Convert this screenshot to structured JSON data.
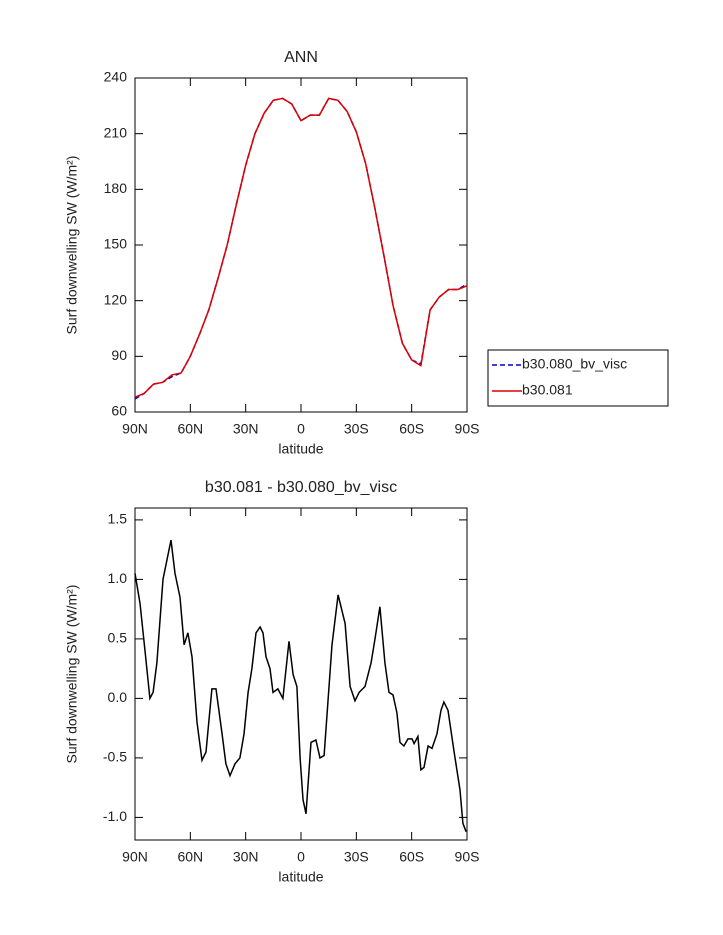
{
  "chart_data": [
    {
      "type": "line",
      "title": "ANN",
      "xlabel": "latitude",
      "ylabel": "Surf downwelling SW (W/m²)",
      "x": [
        90,
        85,
        80,
        75,
        70,
        65,
        60,
        55,
        50,
        45,
        40,
        35,
        30,
        25,
        20,
        15,
        10,
        5,
        0,
        -5,
        -10,
        -15,
        -20,
        -25,
        -30,
        -35,
        -40,
        -45,
        -50,
        -55,
        -60,
        -65,
        -70,
        -75,
        -80,
        -85,
        -90
      ],
      "series": [
        {
          "name": "b30.080_bv_visc",
          "color": "#0000cc",
          "dash": true,
          "values": [
            67,
            70,
            75,
            76,
            79,
            81,
            90,
            102,
            115,
            132,
            150,
            172,
            193,
            210,
            221,
            228,
            229,
            226,
            217,
            220,
            220,
            229,
            228,
            222,
            211,
            194,
            170,
            144,
            117,
            97,
            88,
            86,
            115,
            122,
            126,
            126,
            129
          ]
        },
        {
          "name": "b30.081",
          "color": "#dd0000",
          "dash": false,
          "values": [
            68,
            70,
            75,
            76,
            80,
            81,
            90,
            102,
            115,
            132,
            150,
            172,
            193,
            210,
            221,
            228,
            229,
            226,
            217,
            220,
            220,
            229,
            228,
            222,
            211,
            194,
            170,
            144,
            117,
            97,
            88,
            85,
            115,
            122,
            126,
            126,
            128
          ]
        }
      ],
      "xlim": [
        90,
        -90
      ],
      "ylim": [
        60,
        240
      ],
      "xticks": [
        {
          "value": 90,
          "label": "90N"
        },
        {
          "value": 60,
          "label": "60N"
        },
        {
          "value": 30,
          "label": "30N"
        },
        0,
        {
          "value": -30,
          "label": "30S"
        },
        {
          "value": -60,
          "label": "60S"
        },
        {
          "value": -90,
          "label": "90S"
        }
      ],
      "yticks": [
        60,
        90,
        120,
        150,
        180,
        210,
        240
      ],
      "legend": "right"
    },
    {
      "type": "line",
      "title": "b30.081 - b30.080_bv_visc",
      "xlabel": "latitude",
      "ylabel": "Surf downwelling SW (W/m²)",
      "x": [
        90,
        87.3,
        84.6,
        81.9,
        80.2,
        78.1,
        74.8,
        70.5,
        68.3,
        65.6,
        63.4,
        61.3,
        59.1,
        56.4,
        53.7,
        51.5,
        48.3,
        46.1,
        42.8,
        40.7,
        38.5,
        35.8,
        33.1,
        30.9,
        28.7,
        26.6,
        24.4,
        22.2,
        20.6,
        19.0,
        16.8,
        15.2,
        12.5,
        9.8,
        6.5,
        4.3,
        2.2,
        0.5,
        -1.1,
        -2.7,
        -5.4,
        -8.1,
        -10.3,
        -12.5,
        -16.8,
        -20.1,
        -23.9,
        -26.6,
        -29.3,
        -31.5,
        -34.7,
        -38.0,
        -40.1,
        -42.8,
        -45.5,
        -47.7,
        -49.9,
        -52.0,
        -53.7,
        -55.8,
        -58.0,
        -60.2,
        -61.3,
        -63.4,
        -65.0,
        -66.7,
        -68.9,
        -71.0,
        -73.7,
        -75.9,
        -77.5,
        -79.7,
        -83.0,
        -86.2,
        -87.8,
        -89.5
      ],
      "series": [
        {
          "color": "#000000",
          "dash": false,
          "values": [
            1.05,
            0.8,
            0.4,
            0.0,
            0.05,
            0.3,
            1.0,
            1.33,
            1.05,
            0.85,
            0.45,
            0.55,
            0.35,
            -0.2,
            -0.52,
            -0.45,
            0.08,
            0.08,
            -0.3,
            -0.55,
            -0.65,
            -0.55,
            -0.5,
            -0.3,
            0.05,
            0.25,
            0.55,
            0.6,
            0.55,
            0.35,
            0.25,
            0.05,
            0.08,
            0.0,
            0.48,
            0.2,
            0.1,
            -0.5,
            -0.85,
            -0.97,
            -0.37,
            -0.35,
            -0.5,
            -0.48,
            0.45,
            0.87,
            0.63,
            0.1,
            -0.02,
            0.05,
            0.1,
            0.3,
            0.5,
            0.77,
            0.3,
            0.05,
            0.03,
            -0.12,
            -0.37,
            -0.4,
            -0.34,
            -0.34,
            -0.38,
            -0.32,
            -0.6,
            -0.58,
            -0.4,
            -0.42,
            -0.3,
            -0.1,
            -0.03,
            -0.1,
            -0.45,
            -0.77,
            -1.05,
            -1.12
          ]
        }
      ],
      "xlim": [
        90,
        -90
      ],
      "ylim": [
        -1.19,
        1.6
      ],
      "xticks": [
        {
          "value": 90,
          "label": "90N"
        },
        {
          "value": 60,
          "label": "60N"
        },
        {
          "value": 30,
          "label": "30N"
        },
        0,
        {
          "value": -30,
          "label": "30S"
        },
        {
          "value": -60,
          "label": "60S"
        },
        {
          "value": -90,
          "label": "90S"
        }
      ],
      "yticks": [
        1.5,
        {
          "value": 1.0,
          "label": "1.0"
        },
        0.5,
        {
          "value": 0.0,
          "label": "0.0"
        },
        -0.5,
        {
          "value": -1.0,
          "label": "-1.0"
        }
      ]
    }
  ]
}
